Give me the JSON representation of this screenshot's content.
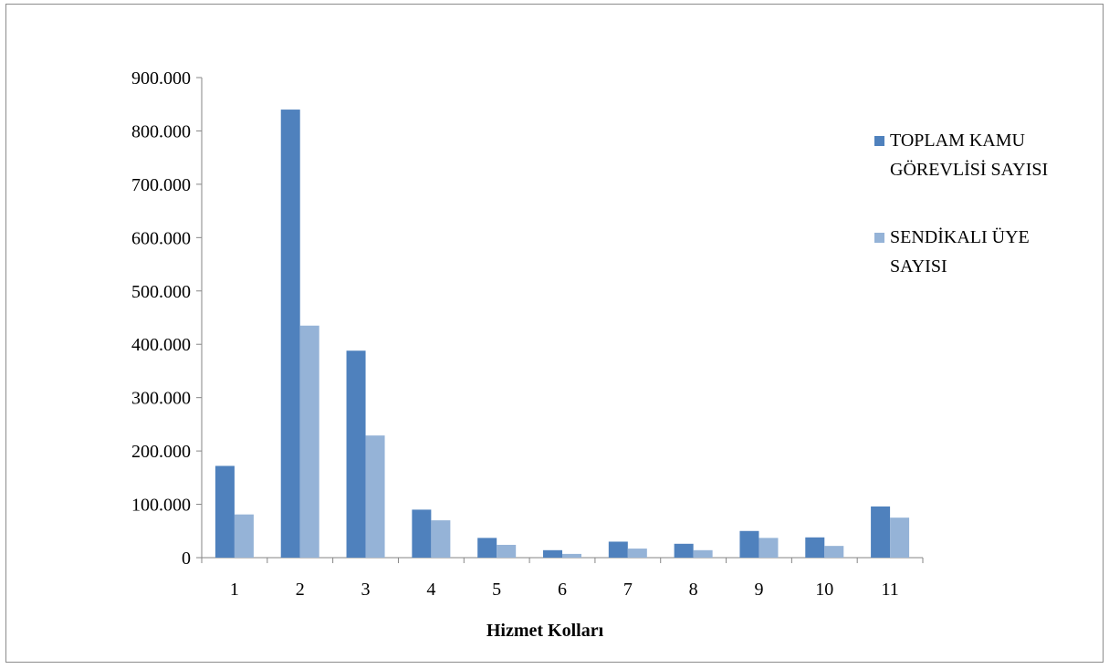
{
  "chart_data": {
    "type": "bar",
    "title": "",
    "xlabel": "Hizmet Kolları",
    "ylabel": "",
    "categories": [
      "1",
      "2",
      "3",
      "4",
      "5",
      "6",
      "7",
      "8",
      "9",
      "10",
      "11"
    ],
    "ylim": [
      0,
      900000
    ],
    "yticks": [
      0,
      100000,
      200000,
      300000,
      400000,
      500000,
      600000,
      700000,
      800000,
      900000
    ],
    "ytick_labels": [
      "0",
      "100.000",
      "200.000",
      "300.000",
      "400.000",
      "500.000",
      "600.000",
      "700.000",
      "800.000",
      "900.000"
    ],
    "grid": false,
    "legend_position": "right",
    "series": [
      {
        "name": "TOPLAM KAMU GÖREVLİSİ SAYISI",
        "name_lines": [
          "TOPLAM KAMU",
          "GÖREVLİSİ SAYISI"
        ],
        "color": "#4f81bd",
        "values": [
          172000,
          840000,
          388000,
          90000,
          37000,
          14000,
          30000,
          26000,
          50000,
          38000,
          96000
        ]
      },
      {
        "name": "SENDİKALI ÜYE SAYISI",
        "name_lines": [
          "SENDİKALI ÜYE",
          "SAYISI"
        ],
        "color": "#95b3d7",
        "values": [
          81000,
          435000,
          229000,
          70000,
          24000,
          7000,
          17000,
          14000,
          37000,
          22000,
          75000
        ]
      }
    ]
  }
}
